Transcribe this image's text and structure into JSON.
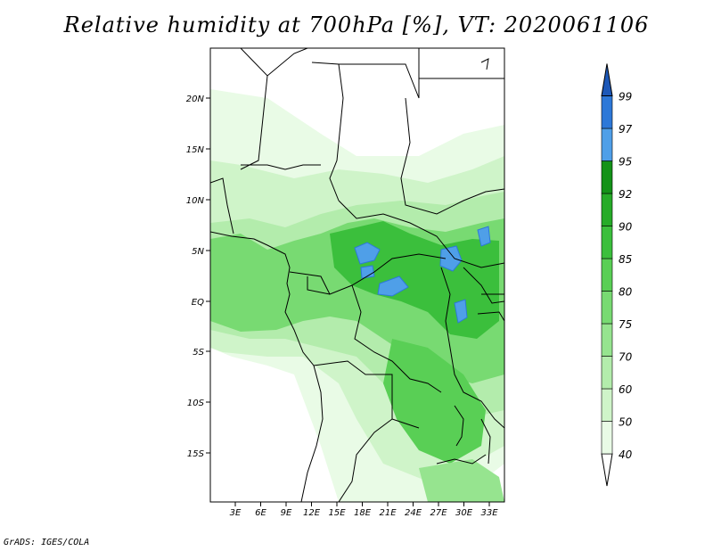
{
  "title": "Relative humidity at 700hPa [%], VT: 2020061106",
  "credit": "GrADS: IGES/COLA",
  "map": {
    "lat_labels": [
      "20N",
      "15N",
      "10N",
      "5N",
      "EQ",
      "5S",
      "10S",
      "15S"
    ],
    "lon_labels": [
      "3E",
      "6E",
      "9E",
      "12E",
      "15E",
      "18E",
      "21E",
      "24E",
      "27E",
      "30E",
      "33E"
    ]
  },
  "colorbar": {
    "levels": [
      "40",
      "50",
      "60",
      "70",
      "75",
      "80",
      "85",
      "90",
      "92",
      "95",
      "97",
      "99"
    ],
    "colors": [
      "#ffffff",
      "#e9fbe6",
      "#cff4c9",
      "#b3ecac",
      "#96e48f",
      "#78da72",
      "#59cf55",
      "#3bbf3c",
      "#26ab28",
      "#149218",
      "#4f9fe8",
      "#2d78d8",
      "#1d58b8"
    ]
  }
}
